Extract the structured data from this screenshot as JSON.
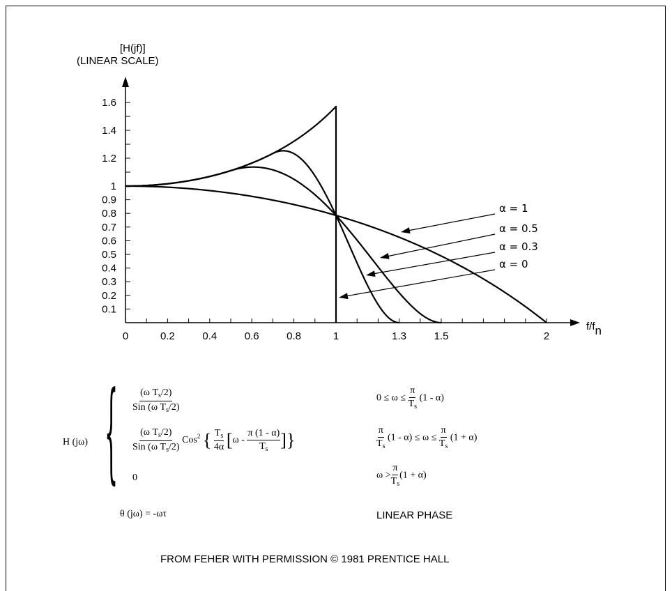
{
  "chart_data": {
    "type": "line",
    "ylabel_line1": "[H(jf)]",
    "ylabel_line2": "(LINEAR SCALE)",
    "xlabel": "f/f",
    "xlabel_sub": "n",
    "xlim": [
      0,
      2.1
    ],
    "ylim": [
      0,
      1.66
    ],
    "x_ticks": [
      "0",
      "0.2",
      "0.4",
      "0.6",
      "0.8",
      "1",
      "1.3",
      "1.5",
      "2"
    ],
    "x_tick_values": [
      0,
      0.2,
      0.4,
      0.6,
      0.8,
      1,
      1.3,
      1.5,
      2
    ],
    "y_ticks": [
      "0.1",
      "0.2",
      "0.3",
      "0.4",
      "0.5",
      "0.6",
      "0.7",
      "0.8",
      "0.9",
      "1",
      "1.2",
      "1.4",
      "1.6"
    ],
    "y_tick_values": [
      0.1,
      0.2,
      0.3,
      0.4,
      0.5,
      0.6,
      0.7,
      0.8,
      0.9,
      1,
      1.2,
      1.4,
      1.6
    ],
    "series": [
      {
        "name": "α = 1",
        "alpha": 1
      },
      {
        "name": "α = 0.5",
        "alpha": 0.5
      },
      {
        "name": "α = 0.3",
        "alpha": 0.3
      },
      {
        "name": "α = 0",
        "alpha": 0
      }
    ],
    "grid": false
  },
  "formula": {
    "lhs": "H (jω)",
    "case1_num": "(ω T",
    "case1_num_sub": "s",
    "case1_num_end": "/2)",
    "case1_den": "Sin (ω T",
    "case1_den_sub": "s",
    "case1_den_end": "/2)",
    "case1_cond_pre": "0 ≤ ω ≤",
    "case1_cond_pi": "π",
    "case1_cond_T": "T",
    "case1_cond_Tsub": "s",
    "case1_cond_post": "(1 - α)",
    "case2_cos": "Cos",
    "case2_cos_sup": "2",
    "case2_ts": "T",
    "case2_ts_sub": "s",
    "case2_4a": "4α",
    "case2_omega": "ω -",
    "case2_pinum": "π (1 - α)",
    "case2_piden": "T",
    "case2_piden_sub": "s",
    "case2_cond_mid": "(1 - α) ≤ ω ≤",
    "case2_cond_post": "(1 + α)",
    "case3_val": "0",
    "case3_cond_pre": "ω >",
    "case3_cond_post": "(1 + α)",
    "phase": "θ (jω) = -ωτ",
    "phase_label": "LINEAR PHASE"
  },
  "credit": "FROM FEHER WITH PERMISSION © 1981 PRENTICE HALL"
}
